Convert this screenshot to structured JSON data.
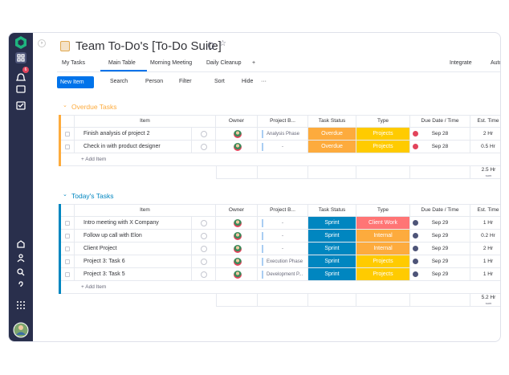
{
  "header": {
    "title": "Team To-Do's [To-Do Suite]",
    "tabs": [
      "My Tasks",
      "Main Table",
      "Morning Meeting",
      "Daily Cleanup",
      "+"
    ],
    "active_tab": 1,
    "actions": [
      "Integrate",
      "Autom"
    ]
  },
  "toolbar": {
    "new_item": "New Item",
    "buttons": [
      "Search",
      "Person",
      "Filter",
      "Sort",
      "Hide",
      "···"
    ]
  },
  "sidebar": {
    "badge": "6"
  },
  "columns": [
    "Item",
    "Owner",
    "Project B...",
    "Task Status",
    "Type",
    "Due Date / Time",
    "Est. Time"
  ],
  "groups": [
    {
      "title": "Overdue Tasks",
      "color": "#fdab3d",
      "add": "+ Add Item",
      "total": "2.5 Hr",
      "total_label": "sum",
      "rows": [
        {
          "item": "Finish analysis of project 2",
          "project": "Analysis Phase",
          "status": "Overdue",
          "status_color": "#fdab3d",
          "type": "Projects",
          "type_color": "#ffcb00",
          "date": "Sep 28",
          "date_alert": true,
          "est": "2 Hr"
        },
        {
          "item": "Check in with product designer",
          "project": "-",
          "status": "Overdue",
          "status_color": "#fdab3d",
          "type": "Projects",
          "type_color": "#ffcb00",
          "date": "Sep 28",
          "date_alert": true,
          "est": "0.5 Hr"
        }
      ]
    },
    {
      "title": "Today's Tasks",
      "color": "#0086c0",
      "add": "+ Add Item",
      "total": "5.2 Hr",
      "total_label": "sum",
      "rows": [
        {
          "item": "Intro meeting with X Company",
          "project": "-",
          "status": "Sprint",
          "status_color": "#0086c0",
          "type": "Client Work",
          "type_color": "#ff7575",
          "date": "Sep 29",
          "date_alert": false,
          "est": "1 Hr"
        },
        {
          "item": "Follow up call with Elon",
          "project": "-",
          "status": "Sprint",
          "status_color": "#0086c0",
          "type": "Internal",
          "type_color": "#fdab3d",
          "date": "Sep 29",
          "date_alert": false,
          "est": "0.2 Hr"
        },
        {
          "item": "Client Project",
          "project": "-",
          "status": "Sprint",
          "status_color": "#0086c0",
          "type": "Internal",
          "type_color": "#fdab3d",
          "date": "Sep 29",
          "date_alert": false,
          "est": "2 Hr"
        },
        {
          "item": "Project 3: Task 6",
          "project": "Execution Phase",
          "status": "Sprint",
          "status_color": "#0086c0",
          "type": "Projects",
          "type_color": "#ffcb00",
          "date": "Sep 29",
          "date_alert": false,
          "est": "1 Hr"
        },
        {
          "item": "Project 3: Task 5",
          "project": "Development P...",
          "status": "Sprint",
          "status_color": "#0086c0",
          "type": "Projects",
          "type_color": "#ffcb00",
          "date": "Sep 29",
          "date_alert": false,
          "est": "1 Hr"
        }
      ]
    }
  ]
}
